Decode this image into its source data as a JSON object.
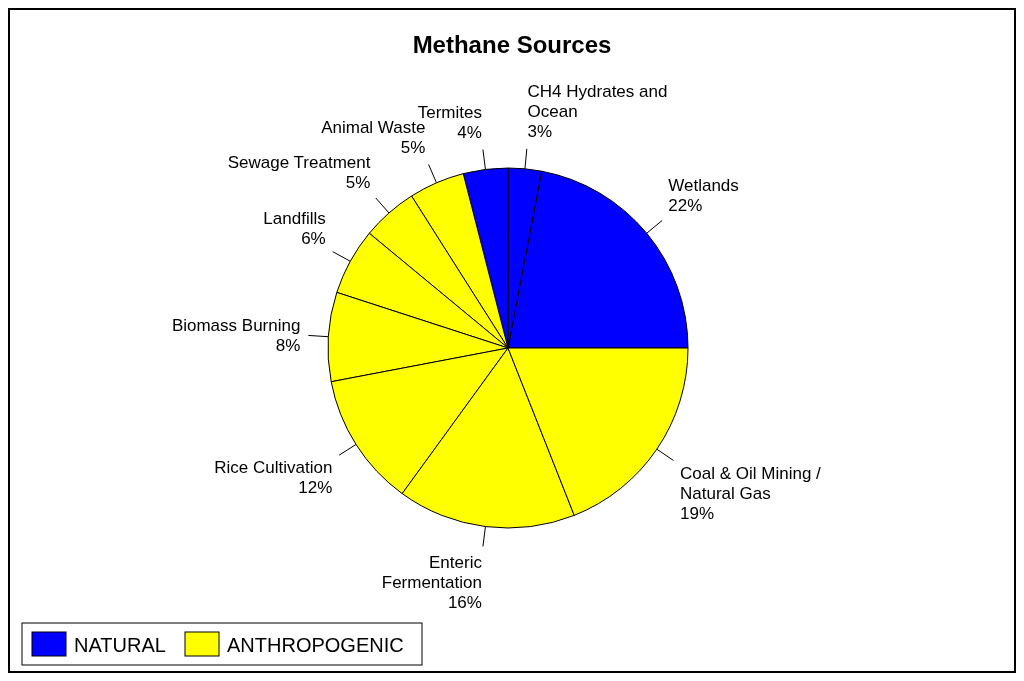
{
  "chart_data": {
    "type": "pie",
    "title": "Methane Sources",
    "categories": [
      "Wetlands",
      "CH4 Hydrates and Ocean",
      "Termites",
      "Animal Waste",
      "Sewage Treatment",
      "Landfills",
      "Biomass Burning",
      "Rice Cultivation",
      "Enteric Fermentation",
      "Coal & Oil Mining / Natural Gas"
    ],
    "values": [
      22,
      3,
      4,
      5,
      5,
      6,
      8,
      12,
      16,
      19
    ],
    "colors": [
      "#0000ff",
      "#0000ff",
      "#0000ff",
      "#ffff00",
      "#ffff00",
      "#ffff00",
      "#ffff00",
      "#ffff00",
      "#ffff00",
      "#ffff00"
    ],
    "value_labels": [
      "22%",
      "3%",
      "4%",
      "5%",
      "5%",
      "6%",
      "8%",
      "12%",
      "16%",
      "19%"
    ],
    "annotations": [
      "NATURAL",
      "ANTHROPOGENIC"
    ]
  }
}
